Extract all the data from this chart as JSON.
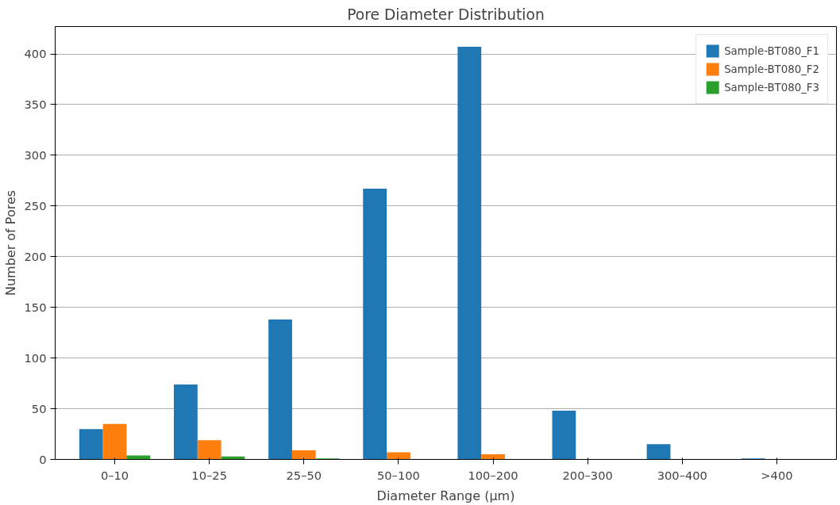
{
  "chart_data": {
    "type": "bar",
    "title": "Pore Diameter Distribution",
    "xlabel": "Diameter Range (µm)",
    "ylabel": "Number of Pores",
    "categories": [
      "0–10",
      "10–25",
      "25–50",
      "50–100",
      "100–200",
      "200–300",
      "300–400",
      ">400"
    ],
    "series": [
      {
        "name": "Sample-BT080_F1",
        "color": "#1f77b4",
        "values": [
          30,
          74,
          138,
          267,
          407,
          48,
          15,
          1
        ]
      },
      {
        "name": "Sample-BT080_F2",
        "color": "#ff7f0e",
        "values": [
          35,
          19,
          9,
          7,
          5,
          0,
          0,
          0
        ]
      },
      {
        "name": "Sample-BT080_F3",
        "color": "#2ca02c",
        "values": [
          4,
          3,
          1,
          0,
          0,
          0,
          0,
          0
        ]
      }
    ],
    "ylim": [
      0,
      427
    ],
    "yticks": [
      0,
      50,
      100,
      150,
      200,
      250,
      300,
      350,
      400
    ],
    "grid": "y",
    "legend": "top right"
  }
}
